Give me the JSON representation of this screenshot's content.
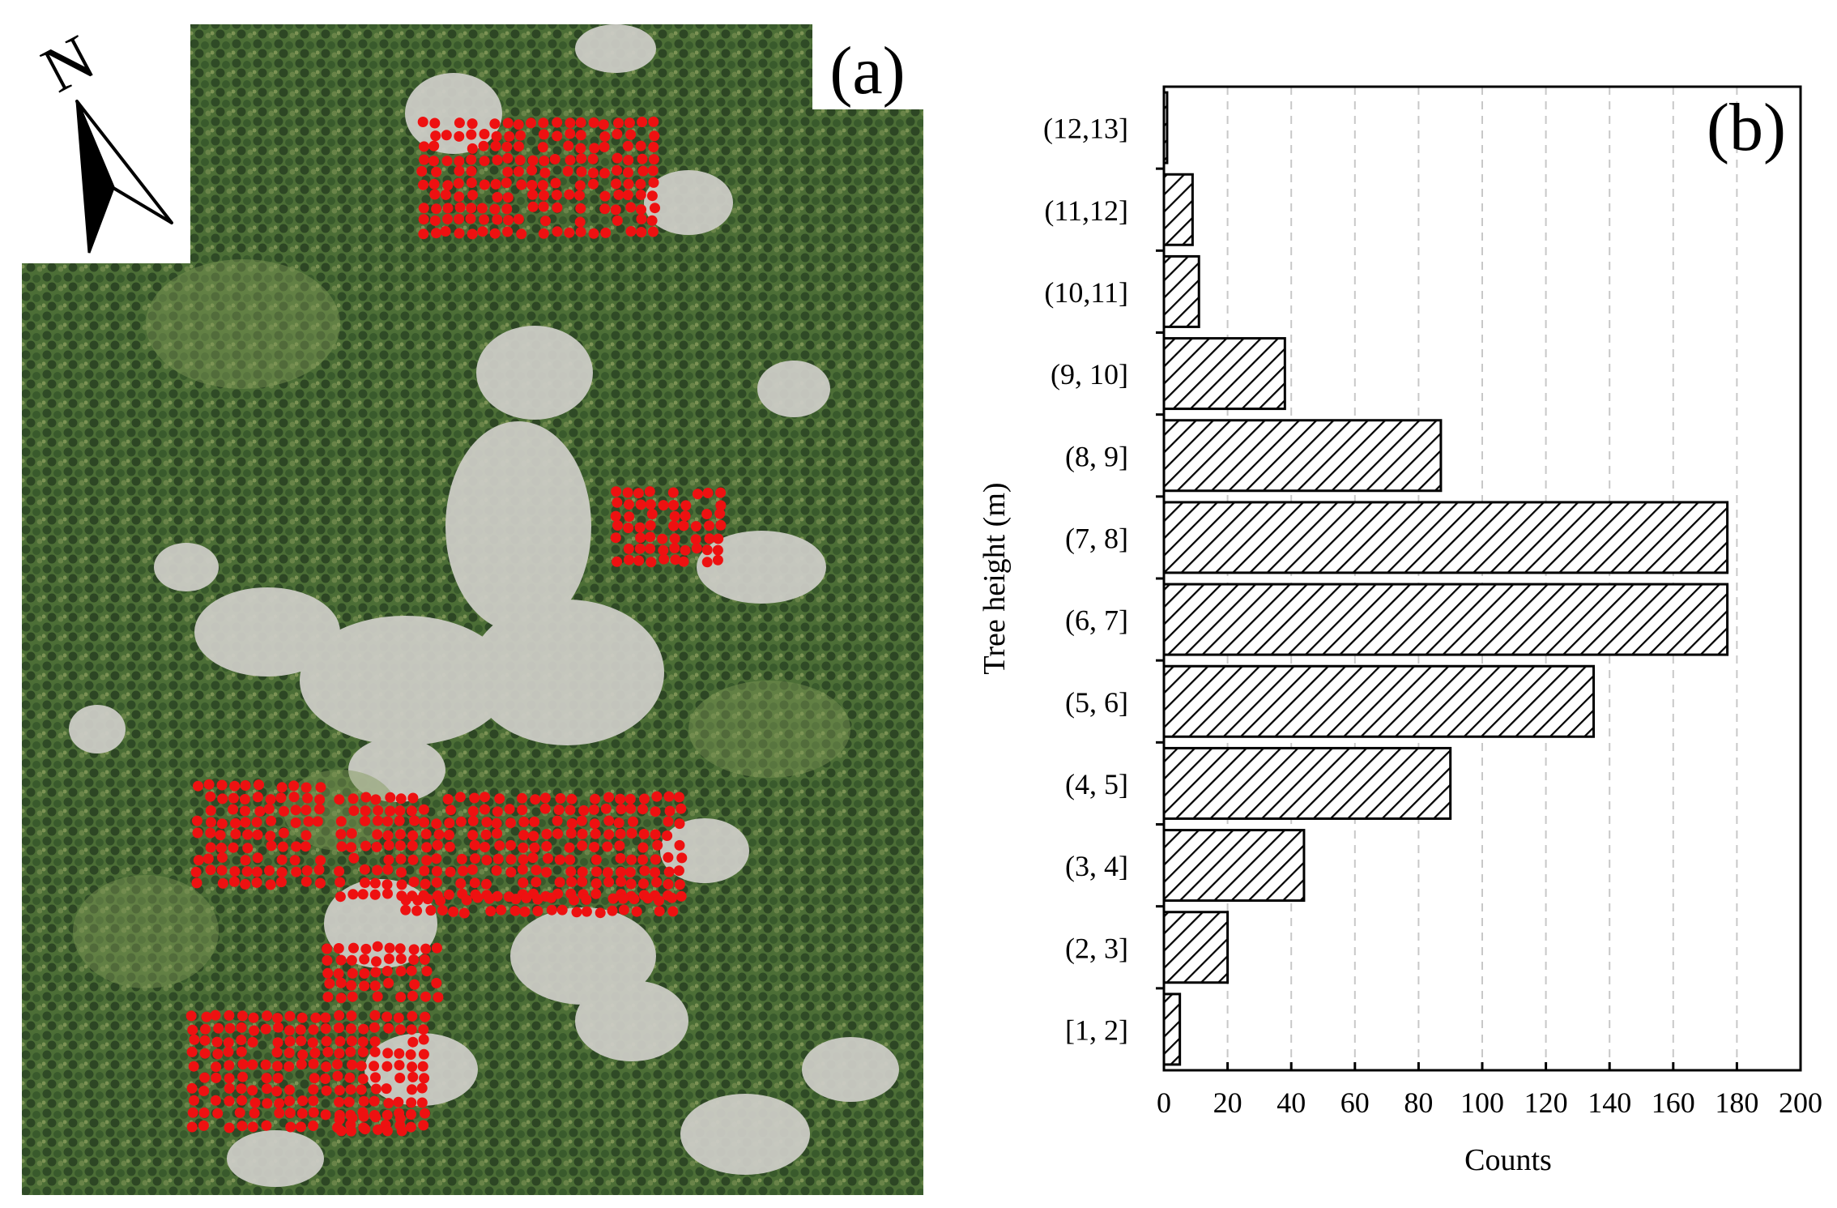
{
  "panel_a": {
    "label": "(a)",
    "north_label": "N",
    "colors": {
      "forest_dark": "#33512a",
      "forest_mid": "#4c6e36",
      "forest_light": "#7e9757",
      "clearing": "#cdccc6",
      "marker": "#ee1111"
    },
    "icons": [
      "north-arrow-icon"
    ]
  },
  "chart_data": {
    "type": "bar",
    "orientation": "horizontal",
    "panel_label": "(b)",
    "categories": [
      "[1, 2]",
      "(2, 3]",
      "(3, 4]",
      "(4, 5]",
      "(5, 6]",
      "(6, 7]",
      "(7, 8]",
      "(8, 9]",
      "(9, 10]",
      "(10,11]",
      "(11,12]",
      "(12,13]"
    ],
    "values": [
      5,
      20,
      44,
      90,
      135,
      177,
      177,
      87,
      38,
      11,
      9,
      1
    ],
    "xlabel": "Counts",
    "ylabel": "Tree height (m)",
    "xlim": [
      0,
      200
    ],
    "xticks": [
      0,
      20,
      40,
      60,
      80,
      100,
      120,
      140,
      160,
      180,
      200
    ],
    "grid": "vertical dashed",
    "bar_fill": "diagonal hatch",
    "colors": {
      "bar_edge": "#000000",
      "hatch": "#000000",
      "grid": "#c8c8c8"
    }
  }
}
